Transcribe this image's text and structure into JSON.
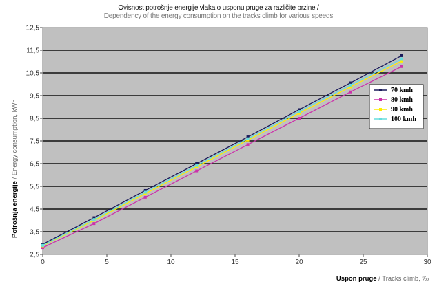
{
  "chart_data": {
    "type": "line",
    "title": "Ovisnost potrošnje energije vlaka o usponu pruge za različite brzine /",
    "subtitle": "Dependency of the energy consumption on the tracks climb for various speeds",
    "xlabel_bold": "Uspon pruge",
    "xlabel_rest": " / Tracks climb, ‰",
    "ylabel_bold": "Potrošnja energije",
    "ylabel_rest": " / Energy consumption, kWh",
    "xlim": [
      0,
      30
    ],
    "ylim": [
      2.5,
      12.5
    ],
    "xticks": [
      "0",
      "5",
      "10",
      "15",
      "20",
      "25",
      "30"
    ],
    "yticks": [
      "2,5",
      "3,5",
      "4,5",
      "5,5",
      "6,5",
      "7,5",
      "8,5",
      "9,5",
      "10,5",
      "11,5",
      "12,5"
    ],
    "grid": true,
    "legend_position": "right",
    "x": [
      0,
      4,
      8,
      12,
      16,
      20,
      24,
      28
    ],
    "series": [
      {
        "name": "70 kmh",
        "color": "#1a1a5a",
        "values": [
          2.95,
          4.12,
          5.32,
          6.5,
          7.68,
          8.88,
          10.06,
          11.26
        ]
      },
      {
        "name": "80 kmh",
        "color": "#cc33aa",
        "values": [
          2.8,
          3.86,
          5.02,
          6.18,
          7.34,
          8.5,
          9.66,
          10.78
        ]
      },
      {
        "name": "90 kmh",
        "color": "#ffee00",
        "values": [
          2.88,
          4.0,
          5.18,
          6.36,
          7.54,
          8.72,
          9.88,
          11.02
        ]
      },
      {
        "name": "100 kmh",
        "color": "#66dddd",
        "values": [
          2.9,
          4.04,
          5.24,
          6.42,
          7.6,
          8.8,
          9.96,
          11.12
        ]
      }
    ]
  }
}
